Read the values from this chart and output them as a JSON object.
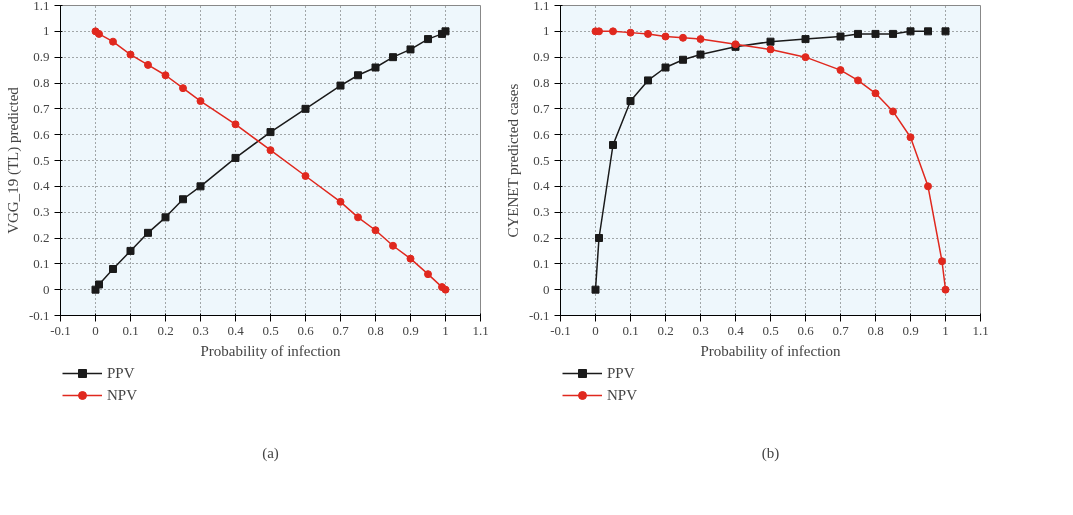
{
  "chart_data": [
    {
      "type": "line",
      "xlabel": "Probability of infection",
      "ylabel": "VGG_19 (TL) predicted",
      "annotations": [
        "(a)"
      ],
      "xlim": [
        -0.1,
        1.1
      ],
      "ylim": [
        -0.1,
        1.1
      ],
      "xticks": [
        -0.1,
        0,
        0.1,
        0.2,
        0.3,
        0.4,
        0.5,
        0.6,
        0.7,
        0.8,
        0.9,
        1,
        1.1
      ],
      "yticks": [
        -0.1,
        0,
        0.1,
        0.2,
        0.3,
        0.4,
        0.5,
        0.6,
        0.7,
        0.8,
        0.9,
        1,
        1.1
      ],
      "grid": true,
      "legend": "bottom left",
      "line_style": "solid",
      "x": [
        0,
        0.01,
        0.05,
        0.1,
        0.15,
        0.2,
        0.25,
        0.3,
        0.4,
        0.5,
        0.6,
        0.7,
        0.75,
        0.8,
        0.85,
        0.9,
        0.95,
        0.99,
        1
      ],
      "series": [
        {
          "name": "PPV",
          "color": "#1a1a1a",
          "marker": "square",
          "values": [
            0,
            0.02,
            0.08,
            0.15,
            0.22,
            0.28,
            0.35,
            0.4,
            0.51,
            0.61,
            0.7,
            0.79,
            0.83,
            0.86,
            0.9,
            0.93,
            0.97,
            0.99,
            1.0
          ]
        },
        {
          "name": "NPV",
          "color": "#e0281e",
          "marker": "circle",
          "values": [
            1.0,
            0.99,
            0.96,
            0.91,
            0.87,
            0.83,
            0.78,
            0.73,
            0.64,
            0.54,
            0.44,
            0.34,
            0.28,
            0.23,
            0.17,
            0.12,
            0.06,
            0.01,
            0.0
          ]
        }
      ]
    },
    {
      "type": "line",
      "xlabel": "Probability of infection",
      "ylabel": "CYENET predicted cases",
      "annotations": [
        "(b)"
      ],
      "xlim": [
        -0.1,
        1.1
      ],
      "ylim": [
        -0.1,
        1.1
      ],
      "xticks": [
        -0.1,
        0,
        0.1,
        0.2,
        0.3,
        0.4,
        0.5,
        0.6,
        0.7,
        0.8,
        0.9,
        1,
        1.1
      ],
      "yticks": [
        -0.1,
        0,
        0.1,
        0.2,
        0.3,
        0.4,
        0.5,
        0.6,
        0.7,
        0.8,
        0.9,
        1,
        1.1
      ],
      "grid": true,
      "legend": "bottom left",
      "line_style": "solid",
      "x": [
        0,
        0.01,
        0.05,
        0.1,
        0.15,
        0.2,
        0.25,
        0.3,
        0.4,
        0.5,
        0.6,
        0.7,
        0.75,
        0.8,
        0.85,
        0.9,
        0.95,
        0.99,
        1
      ],
      "series": [
        {
          "name": "PPV",
          "color": "#1a1a1a",
          "marker": "square",
          "values": [
            0,
            0.2,
            0.56,
            0.73,
            0.81,
            0.86,
            0.89,
            0.91,
            0.94,
            0.96,
            0.97,
            0.98,
            0.99,
            0.99,
            0.99,
            1.0,
            1.0,
            null,
            1.0
          ]
        },
        {
          "name": "NPV",
          "color": "#e0281e",
          "marker": "circle",
          "values": [
            1.0,
            1.0,
            1.0,
            0.995,
            0.99,
            0.98,
            0.975,
            0.97,
            0.95,
            0.93,
            0.9,
            0.85,
            0.81,
            0.76,
            0.69,
            0.59,
            0.4,
            0.11,
            0.0
          ]
        }
      ]
    }
  ]
}
